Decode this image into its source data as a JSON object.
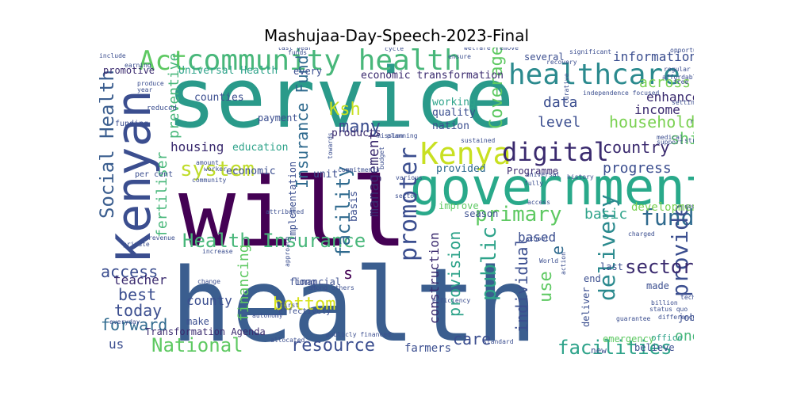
{
  "figure": {
    "title": "Mashujaa-Day-Speech-2023-Final",
    "background": "#ffffff",
    "palette": [
      "#440154",
      "#3b528b",
      "#21918c",
      "#5ec962",
      "#fde725"
    ]
  },
  "words": [
    {
      "text": "service",
      "color": "#2a9a8a"
    },
    {
      "text": "health",
      "color": "#3b5e8f"
    },
    {
      "text": "will",
      "color": "#440154"
    },
    {
      "text": "government",
      "color": "#29a98a"
    },
    {
      "text": "Kenyan",
      "color": "#3b4e8f"
    },
    {
      "text": "community health",
      "color": "#48b77a"
    },
    {
      "text": "healthcare",
      "color": "#2b8a8e"
    },
    {
      "text": "Kenya",
      "color": "#c8e021"
    },
    {
      "text": "digital",
      "color": "#3a2a6e"
    },
    {
      "text": "Act",
      "color": "#5ec962"
    },
    {
      "text": "Health Insurance",
      "color": "#48b77a"
    },
    {
      "text": "primary",
      "color": "#5ec962"
    },
    {
      "text": "system",
      "color": "#bfdc2a"
    },
    {
      "text": "Social Health",
      "color": "#3b5e8f"
    },
    {
      "text": "promoter",
      "color": "#3b4e8f"
    },
    {
      "text": "facilities",
      "color": "#2ea38a"
    },
    {
      "text": "National",
      "color": "#5ec962"
    },
    {
      "text": "resource",
      "color": "#3b4e8f"
    },
    {
      "text": "fund",
      "color": "#2f6a8e"
    },
    {
      "text": "provide",
      "color": "#3b4e8f"
    },
    {
      "text": "delivery",
      "color": "#2b8a8e"
    },
    {
      "text": "sector",
      "color": "#3a2a6e"
    },
    {
      "text": "household",
      "color": "#7ad151"
    },
    {
      "text": "country",
      "color": "#3a2a6e"
    },
    {
      "text": "Coverage",
      "color": "#5ec962"
    },
    {
      "text": "facility",
      "color": "#2f6a8e"
    },
    {
      "text": "bottom",
      "color": "#d7e219"
    },
    {
      "text": "public",
      "color": "#2ea38a"
    },
    {
      "text": "information",
      "color": "#3b4e8f"
    },
    {
      "text": "across",
      "color": "#7ad151"
    },
    {
      "text": "enhance",
      "color": "#3a2a6e"
    },
    {
      "text": "income",
      "color": "#3a2a6e"
    },
    {
      "text": "data",
      "color": "#3b4e8f"
    },
    {
      "text": "level",
      "color": "#3b4e8f"
    },
    {
      "text": "shift",
      "color": "#5ec962"
    },
    {
      "text": "progress",
      "color": "#3b4e8f"
    },
    {
      "text": "many",
      "color": "#3b4e8f"
    },
    {
      "text": "Ksh",
      "color": "#c8e021"
    },
    {
      "text": "Insurance Fund",
      "color": "#2f6a8e"
    },
    {
      "text": "care",
      "color": "#3b4e8f"
    },
    {
      "text": "access",
      "color": "#3b4e8f"
    },
    {
      "text": "forward",
      "color": "#2f6a8e"
    },
    {
      "text": "best",
      "color": "#3b4e8f"
    },
    {
      "text": "today",
      "color": "#3b4e8f"
    },
    {
      "text": "basic",
      "color": "#2ea38a"
    },
    {
      "text": "use",
      "color": "#5ec962"
    },
    {
      "text": "one",
      "color": "#48b77a"
    },
    {
      "text": "individual",
      "color": "#3b4e8f"
    },
    {
      "text": "provision",
      "color": "#2ea38a"
    },
    {
      "text": "management",
      "color": "#3a2a6e"
    },
    {
      "text": "construction",
      "color": "#3a2a6e"
    },
    {
      "text": "financing",
      "color": "#5ec962"
    },
    {
      "text": "preventive",
      "color": "#48b77a"
    },
    {
      "text": "fertiliser",
      "color": "#48b77a"
    },
    {
      "text": "development",
      "color": "#7ad151"
    },
    {
      "text": "based",
      "color": "#3b4e8f"
    },
    {
      "text": "housing",
      "color": "#3a2a6e"
    },
    {
      "text": "teacher",
      "color": "#3a2a6e"
    },
    {
      "text": "county",
      "color": "#3b4e8f"
    },
    {
      "text": "us",
      "color": "#3b4e8f"
    },
    {
      "text": "farmers",
      "color": "#3b4e8f"
    },
    {
      "text": "s",
      "color": "#440154"
    },
    {
      "text": "e",
      "color": "#2f6a8e"
    },
    {
      "text": "Universal Health",
      "color": "#2ea38a"
    },
    {
      "text": "economic transformation",
      "color": "#3a2a6e"
    },
    {
      "text": "working",
      "color": "#2ea38a"
    },
    {
      "text": "quality",
      "color": "#3b4e8f"
    },
    {
      "text": "nation",
      "color": "#3b4e8f"
    },
    {
      "text": "payment",
      "color": "#3b4e8f"
    },
    {
      "text": "education",
      "color": "#2ea38a"
    },
    {
      "text": "economic",
      "color": "#3b4e8f"
    },
    {
      "text": "counties",
      "color": "#3b4e8f"
    },
    {
      "text": "promotive",
      "color": "#3a2a6e"
    },
    {
      "text": "Programme",
      "color": "#3a2a6e"
    },
    {
      "text": "provided",
      "color": "#2f6a8e"
    },
    {
      "text": "products",
      "color": "#3a2a6e"
    },
    {
      "text": "several",
      "color": "#3b4e8f"
    },
    {
      "text": "every",
      "color": "#3b4e8f"
    },
    {
      "text": "unit",
      "color": "#3b4e8f"
    },
    {
      "text": "season",
      "color": "#3b4e8f"
    },
    {
      "text": "improve",
      "color": "#5ec962"
    },
    {
      "text": "implementation",
      "color": "#3b4e8f"
    },
    {
      "text": "basis",
      "color": "#3b4e8f"
    },
    {
      "text": "long",
      "color": "#3b4e8f"
    },
    {
      "text": "financial",
      "color": "#3b4e8f"
    },
    {
      "text": "last",
      "color": "#3b4e8f"
    },
    {
      "text": "end",
      "color": "#3b4e8f"
    },
    {
      "text": "deliver",
      "color": "#3b4e8f"
    },
    {
      "text": "made",
      "color": "#3b4e8f"
    },
    {
      "text": "jobs",
      "color": "#3b4e8f"
    },
    {
      "text": "office",
      "color": "#2ea38a"
    },
    {
      "text": "emergency",
      "color": "#5ec962"
    },
    {
      "text": "new",
      "color": "#3b4e8f"
    },
    {
      "text": "believe",
      "color": "#3b4e8f"
    },
    {
      "text": "make",
      "color": "#3b4e8f"
    },
    {
      "text": "Transformation Agenda",
      "color": "#3a2a6e"
    },
    {
      "text": "effectively",
      "color": "#3b4e8f"
    },
    {
      "text": "per cent",
      "color": "#3b4e8f"
    },
    {
      "text": "funding",
      "color": "#3b4e8f"
    },
    {
      "text": "reduced",
      "color": "#3b4e8f"
    },
    {
      "text": "among others",
      "color": "#3b4e8f"
    },
    {
      "text": "history",
      "color": "#3b4e8f"
    },
    {
      "text": "billion",
      "color": "#3b4e8f"
    },
    {
      "text": "technology",
      "color": "#3b4e8f"
    },
    {
      "text": "status quo",
      "color": "#3b4e8f"
    },
    {
      "text": "first",
      "color": "#3b4e8f"
    },
    {
      "text": "last year",
      "color": "#3b4e8f"
    },
    {
      "text": "publicly financed",
      "color": "#3b4e8f"
    },
    {
      "text": "allocated",
      "color": "#3b4e8f"
    },
    {
      "text": "standard",
      "color": "#3b4e8f"
    },
    {
      "text": "guarantee",
      "color": "#3b4e8f"
    },
    {
      "text": "efficiency",
      "color": "#3b4e8f"
    },
    {
      "text": "significant",
      "color": "#3b4e8f"
    },
    {
      "text": "curative",
      "color": "#3b4e8f"
    },
    {
      "text": "commitments",
      "color": "#3b4e8f"
    },
    {
      "text": "mission",
      "color": "#3b4e8f"
    },
    {
      "text": "planning",
      "color": "#3b4e8f"
    },
    {
      "text": "towards",
      "color": "#3b4e8f"
    },
    {
      "text": "fully",
      "color": "#3b4e8f"
    },
    {
      "text": "support",
      "color": "#3b4e8f"
    },
    {
      "text": "medical",
      "color": "#3b4e8f"
    },
    {
      "text": "budget",
      "color": "#3b4e8f"
    },
    {
      "text": "universal",
      "color": "#3b4e8f"
    },
    {
      "text": "community",
      "color": "#3b4e8f"
    },
    {
      "text": "charged",
      "color": "#3b4e8f"
    },
    {
      "text": "school",
      "color": "#3b4e8f"
    },
    {
      "text": "World",
      "color": "#3b4e8f"
    },
    {
      "text": "approach",
      "color": "#3b4e8f"
    },
    {
      "text": "autonomy",
      "color": "#3b4e8f"
    },
    {
      "text": "earning",
      "color": "#3b4e8f"
    },
    {
      "text": "include",
      "color": "#3b4e8f"
    },
    {
      "text": "produce",
      "color": "#3b4e8f"
    },
    {
      "text": "year",
      "color": "#3b4e8f"
    },
    {
      "text": "action",
      "color": "#3b4e8f"
    },
    {
      "text": "change",
      "color": "#3b4e8f"
    },
    {
      "text": "revenue",
      "color": "#3b4e8f"
    },
    {
      "text": "regular",
      "color": "#3b4e8f"
    },
    {
      "text": "affordable",
      "color": "#3b4e8f"
    },
    {
      "text": "independence focused",
      "color": "#3b4e8f"
    },
    {
      "text": "setting",
      "color": "#3b4e8f"
    },
    {
      "text": "strategic",
      "color": "#3b4e8f"
    },
    {
      "text": "country",
      "color": "#3b4e8f"
    },
    {
      "text": "ensure",
      "color": "#3b4e8f"
    },
    {
      "text": "sector",
      "color": "#3b4e8f"
    },
    {
      "text": "various",
      "color": "#3b4e8f"
    },
    {
      "text": "access",
      "color": "#3b4e8f"
    },
    {
      "text": "sustained",
      "color": "#3b4e8f"
    },
    {
      "text": "private",
      "color": "#3b4e8f"
    },
    {
      "text": "increase",
      "color": "#3b4e8f"
    },
    {
      "text": "attributed",
      "color": "#3b4e8f"
    },
    {
      "text": "difference",
      "color": "#3b4e8f"
    },
    {
      "text": "everyday",
      "color": "#3b4e8f"
    },
    {
      "text": "amount",
      "color": "#3b4e8f"
    },
    {
      "text": "worker",
      "color": "#3b4e8f"
    },
    {
      "text": "funds",
      "color": "#3b4e8f"
    },
    {
      "text": "remove",
      "color": "#3b4e8f"
    },
    {
      "text": "welfare",
      "color": "#3b4e8f"
    },
    {
      "text": "recovery",
      "color": "#3b4e8f"
    },
    {
      "text": "cycle",
      "color": "#3b4e8f"
    },
    {
      "text": "opportunity",
      "color": "#3b4e8f"
    },
    {
      "text": "free",
      "color": "#3b4e8f"
    },
    {
      "text": "right",
      "color": "#3b4e8f"
    },
    {
      "text": "strengthen",
      "color": "#3b4e8f"
    },
    {
      "text": "sick",
      "color": "#3b4e8f"
    },
    {
      "text": "pursue",
      "color": "#3b4e8f"
    },
    {
      "text": "full",
      "color": "#3b4e8f"
    },
    {
      "text": "aid",
      "color": "#3b4e8f"
    }
  ]
}
